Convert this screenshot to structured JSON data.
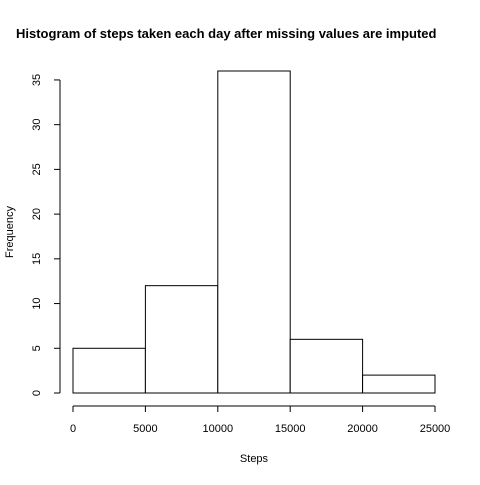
{
  "chart_data": {
    "type": "bar",
    "title": "Histogram of steps taken each day after missing values are imputed",
    "xlabel": "Steps",
    "ylabel": "Frequency",
    "bins": [
      {
        "from": 0,
        "to": 5000,
        "count": 5
      },
      {
        "from": 5000,
        "to": 10000,
        "count": 12
      },
      {
        "from": 10000,
        "to": 15000,
        "count": 36
      },
      {
        "from": 15000,
        "to": 20000,
        "count": 6
      },
      {
        "from": 20000,
        "to": 25000,
        "count": 2
      }
    ],
    "xlim": [
      0,
      25000
    ],
    "ylim": [
      0,
      36
    ],
    "x_ticks": [
      0,
      5000,
      10000,
      15000,
      20000,
      25000
    ],
    "y_ticks": [
      0,
      5,
      10,
      15,
      20,
      25,
      30,
      35
    ],
    "grid": false,
    "legend": "none",
    "bar_fill": "#ffffff",
    "bar_stroke": "#000000"
  }
}
